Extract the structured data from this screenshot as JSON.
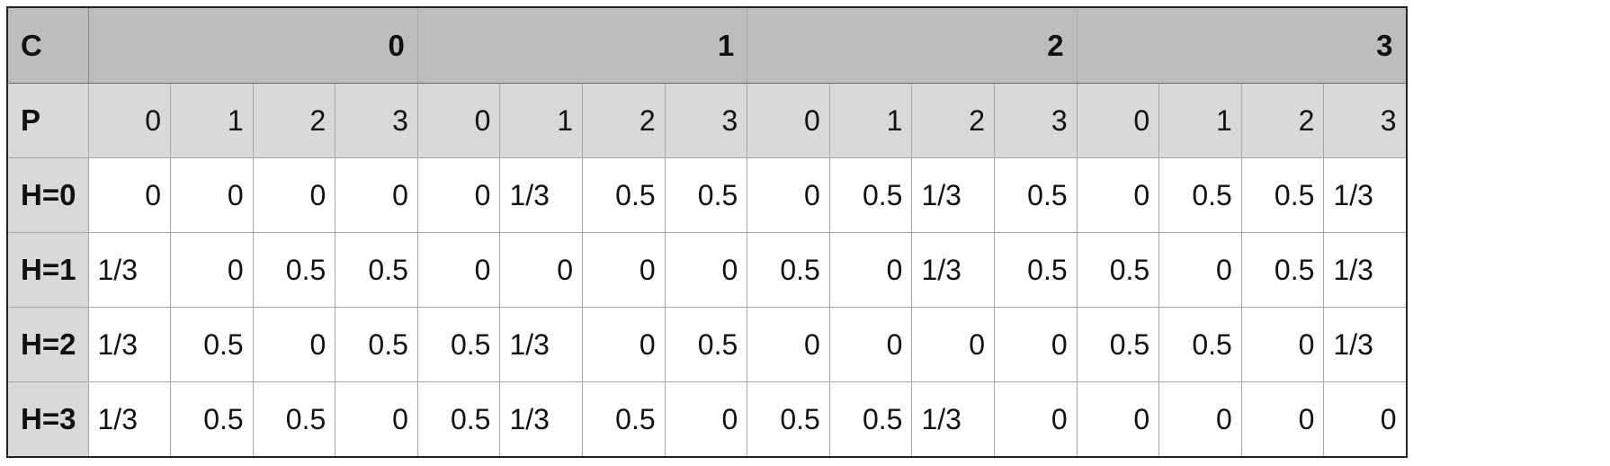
{
  "table": {
    "corner_top": "C",
    "corner_sub": "P",
    "groups": [
      "0",
      "1",
      "2",
      "3"
    ],
    "sub_headers": [
      "0",
      "1",
      "2",
      "3",
      "0",
      "1",
      "2",
      "3",
      "0",
      "1",
      "2",
      "3",
      "0",
      "1",
      "2",
      "3"
    ],
    "rows": [
      {
        "label": "H=0",
        "cells": [
          "0",
          "0",
          "0",
          "0",
          "0",
          "1/3",
          "0.5",
          "0.5",
          "0",
          "0.5",
          "1/3",
          "0.5",
          "0",
          "0.5",
          "0.5",
          "1/3"
        ]
      },
      {
        "label": "H=1",
        "cells": [
          "1/3",
          "0",
          "0.5",
          "0.5",
          "0",
          "0",
          "0",
          "0",
          "0.5",
          "0",
          "1/3",
          "0.5",
          "0.5",
          "0",
          "0.5",
          "1/3"
        ]
      },
      {
        "label": "H=2",
        "cells": [
          "1/3",
          "0.5",
          "0",
          "0.5",
          "0.5",
          "1/3",
          "0",
          "0.5",
          "0",
          "0",
          "0",
          "0",
          "0.5",
          "0.5",
          "0",
          "1/3"
        ]
      },
      {
        "label": "H=3",
        "cells": [
          "1/3",
          "0.5",
          "0.5",
          "0",
          "0.5",
          "1/3",
          "0.5",
          "0",
          "0.5",
          "0.5",
          "1/3",
          "0",
          "0",
          "0",
          "0",
          "0"
        ]
      }
    ]
  }
}
